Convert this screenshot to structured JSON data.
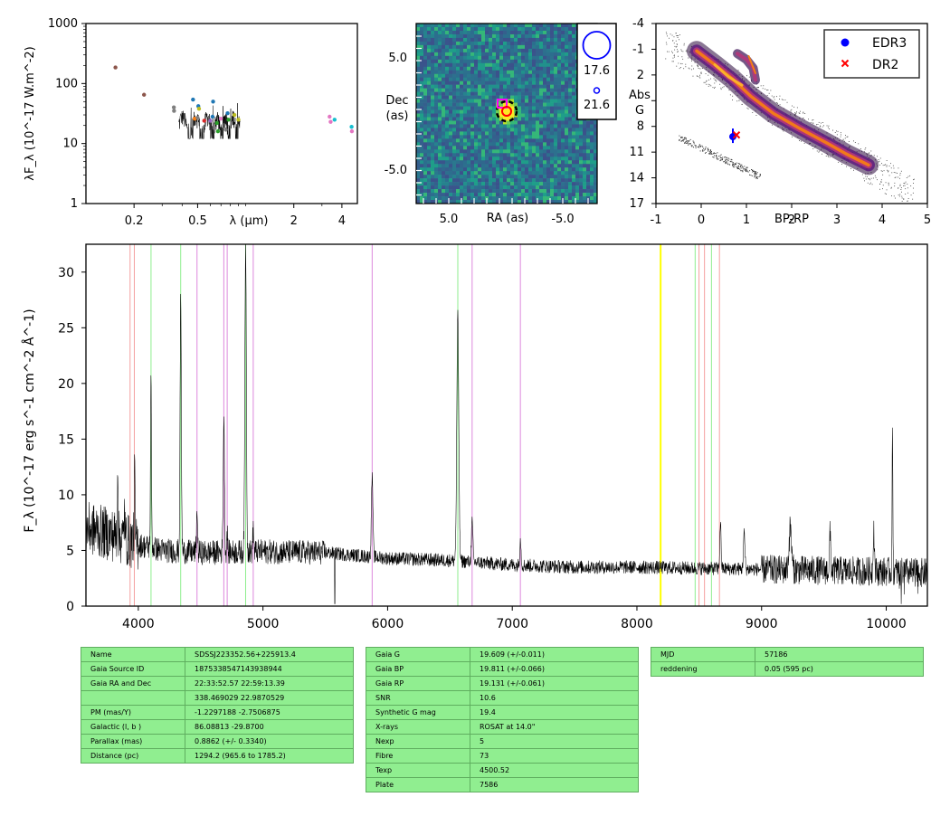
{
  "sed": {
    "ylabel": "λF_λ (10^-17 W.m^-2)",
    "xlabel": "λ (μm)",
    "xticks": [
      "0.2",
      "0.5",
      "2",
      "4"
    ],
    "yticks": [
      "1",
      "10",
      "100",
      "1000"
    ],
    "ylim": [
      1,
      1000
    ],
    "xlim": [
      0.1,
      5
    ],
    "points": [
      {
        "x": 0.153,
        "y": 185,
        "color": "#8c564b"
      },
      {
        "x": 0.231,
        "y": 65,
        "color": "#8c564b"
      },
      {
        "x": 0.355,
        "y": 40,
        "color": "#7f7f7f"
      },
      {
        "x": 0.356,
        "y": 35,
        "color": "#7f7f7f"
      },
      {
        "x": 0.468,
        "y": 54,
        "color": "#1f77b4"
      },
      {
        "x": 0.48,
        "y": 26,
        "color": "#ff7f0e"
      },
      {
        "x": 0.5,
        "y": 27,
        "color": "#7f7f7f"
      },
      {
        "x": 0.505,
        "y": 42,
        "color": "#1f77b4"
      },
      {
        "x": 0.51,
        "y": 38,
        "color": "#bcbd22"
      },
      {
        "x": 0.55,
        "y": 24,
        "color": "#d62728"
      },
      {
        "x": 0.6,
        "y": 24,
        "color": "#9467bd"
      },
      {
        "x": 0.62,
        "y": 28,
        "color": "#1f77b4"
      },
      {
        "x": 0.625,
        "y": 50,
        "color": "#1f77b4"
      },
      {
        "x": 0.64,
        "y": 18,
        "color": "#7f7f7f"
      },
      {
        "x": 0.66,
        "y": 22,
        "color": "#2ca02c"
      },
      {
        "x": 0.67,
        "y": 16,
        "color": "#2ca02c"
      },
      {
        "x": 0.7,
        "y": 26,
        "color": "#e377c2"
      },
      {
        "x": 0.75,
        "y": 17,
        "color": "#7f7f7f"
      },
      {
        "x": 0.77,
        "y": 32,
        "color": "#1f77b4"
      },
      {
        "x": 0.78,
        "y": 25,
        "color": "#2ca02c"
      },
      {
        "x": 0.85,
        "y": 30,
        "color": "#bcbd22"
      },
      {
        "x": 0.9,
        "y": 25,
        "color": "#bcbd22"
      },
      {
        "x": 3.35,
        "y": 28,
        "color": "#e377c2"
      },
      {
        "x": 3.4,
        "y": 23,
        "color": "#e377c2"
      },
      {
        "x": 3.6,
        "y": 25,
        "color": "#17becf"
      },
      {
        "x": 4.6,
        "y": 19,
        "color": "#17becf"
      },
      {
        "x": 4.62,
        "y": 16,
        "color": "#e377c2"
      }
    ]
  },
  "image": {
    "xlabel": "RA (as)",
    "ylabel_line1": "Dec",
    "ylabel_line2": "(as)",
    "xticks": [
      "5.0",
      "-5.0"
    ],
    "yticks": [
      "5.0",
      "-5.0"
    ],
    "legend": [
      "17.6",
      "21.6"
    ]
  },
  "hrd": {
    "xlabel": "BP-RP",
    "ylabel_line1": "Abs",
    "ylabel_line2": "G",
    "xticks": [
      "-1",
      "0",
      "1",
      "2",
      "3",
      "4",
      "5"
    ],
    "yticks": [
      "-4",
      "-1",
      "2",
      "5",
      "8",
      "11",
      "14",
      "17"
    ],
    "legend": [
      {
        "label": "EDR3",
        "color": "#0000ff",
        "marker": "circle"
      },
      {
        "label": "DR2",
        "color": "#ff0000",
        "marker": "x"
      }
    ],
    "edr3": {
      "bp_rp": 0.7,
      "absg": 9.2
    },
    "dr2": {
      "bp_rp": 0.78,
      "absg": 9.0
    }
  },
  "chart_data": {
    "type": "line",
    "ylabel": "F_λ (10^-17 erg s^-1 cm^-2 Å^-1)",
    "xlim": [
      3580,
      10330
    ],
    "ylim": [
      0,
      32.5
    ],
    "xticks": [
      "4000",
      "5000",
      "6000",
      "7000",
      "8000",
      "9000",
      "10000"
    ],
    "yticks": [
      "0",
      "5",
      "10",
      "15",
      "20",
      "25",
      "30"
    ],
    "continuum": [
      [
        3580,
        7.0
      ],
      [
        3700,
        6.7
      ],
      [
        3900,
        6.0
      ],
      [
        4000,
        5.5
      ],
      [
        4200,
        5.0
      ],
      [
        4500,
        4.8
      ],
      [
        5000,
        4.9
      ],
      [
        5500,
        4.8
      ],
      [
        6000,
        4.3
      ],
      [
        6500,
        4.1
      ],
      [
        7000,
        3.7
      ],
      [
        7500,
        3.5
      ],
      [
        8000,
        3.5
      ],
      [
        8500,
        3.4
      ],
      [
        9000,
        3.3
      ],
      [
        9500,
        3.2
      ],
      [
        10000,
        3.1
      ],
      [
        10330,
        3.0
      ]
    ],
    "emission_lines": [
      {
        "x": 3835,
        "peak": 13,
        "width": 3
      },
      {
        "x": 3889,
        "peak": 9,
        "width": 3
      },
      {
        "x": 3970,
        "peak": 12,
        "width": 3
      },
      {
        "x": 4102,
        "peak": 20,
        "width": 4
      },
      {
        "x": 4340,
        "peak": 27.5,
        "width": 5
      },
      {
        "x": 4471,
        "peak": 8.7,
        "width": 4
      },
      {
        "x": 4686,
        "peak": 17,
        "width": 5
      },
      {
        "x": 4713,
        "peak": 7,
        "width": 3
      },
      {
        "x": 4861,
        "peak": 32.5,
        "width": 6
      },
      {
        "x": 4922,
        "peak": 7,
        "width": 4
      },
      {
        "x": 5876,
        "peak": 11.5,
        "width": 6
      },
      {
        "x": 6563,
        "peak": 26,
        "width": 8
      },
      {
        "x": 6678,
        "peak": 7.5,
        "width": 6
      },
      {
        "x": 7065,
        "peak": 6.2,
        "width": 5
      },
      {
        "x": 8670,
        "peak": 7.5,
        "width": 5
      },
      {
        "x": 8860,
        "peak": 6.5,
        "width": 6
      },
      {
        "x": 9230,
        "peak": 7,
        "width": 10
      },
      {
        "x": 9550,
        "peak": 6.5,
        "width": 5
      },
      {
        "x": 9900,
        "peak": 7,
        "width": 5
      },
      {
        "x": 10050,
        "peak": 14.8,
        "width": 3
      }
    ],
    "absorption_dips": [
      {
        "x": 5577,
        "depth": 0
      }
    ],
    "vlines": [
      {
        "x": 3934,
        "color": "#f4a0a0"
      },
      {
        "x": 3968,
        "color": "#f4a0a0"
      },
      {
        "x": 4102,
        "color": "#90ee90"
      },
      {
        "x": 4340,
        "color": "#90ee90"
      },
      {
        "x": 4471,
        "color": "#dd88dd"
      },
      {
        "x": 4686,
        "color": "#dd88dd"
      },
      {
        "x": 4713,
        "color": "#dd88dd"
      },
      {
        "x": 4861,
        "color": "#90ee90"
      },
      {
        "x": 4922,
        "color": "#dd88dd"
      },
      {
        "x": 5876,
        "color": "#dd88dd"
      },
      {
        "x": 6563,
        "color": "#90ee90"
      },
      {
        "x": 6678,
        "color": "#dd88dd"
      },
      {
        "x": 7065,
        "color": "#dd88dd"
      },
      {
        "x": 8190,
        "color": "#ffff00"
      },
      {
        "x": 8498,
        "color": "#f4a0a0"
      },
      {
        "x": 8542,
        "color": "#f4a0a0"
      },
      {
        "x": 8662,
        "color": "#f4a0a0"
      },
      {
        "x": 8467,
        "color": "#90ee90"
      },
      {
        "x": 8598,
        "color": "#90ee90"
      }
    ]
  },
  "tables": [
    [
      [
        "Name",
        "SDSSJ223352.56+225913.4"
      ],
      [
        "Gaia Source ID",
        "1875338547143938944"
      ],
      [
        "Gaia RA and Dec",
        "22:33:52.57    22:59:13.39"
      ],
      [
        "",
        "338.469029    22.9870529"
      ],
      [
        "PM (mas/Y)",
        "-1.2297188    -2.7506875"
      ],
      [
        "Galactic (l, b )",
        "86.08813    -29.8700"
      ],
      [
        "Parallax (mas)",
        "0.8862 (+/- 0.3340)"
      ],
      [
        "Distance (pc)",
        "1294.2 (965.6 to 1785.2)"
      ]
    ],
    [
      [
        "Gaia G",
        "19.609 (+/-0.011)"
      ],
      [
        "Gaia BP",
        "19.811 (+/-0.066)"
      ],
      [
        "Gaia RP",
        "19.131 (+/-0.061)"
      ],
      [
        "SNR",
        "10.6"
      ],
      [
        "Synthetic G mag",
        "19.4"
      ],
      [
        "X-rays",
        "ROSAT at 14.0\""
      ],
      [
        "Nexp",
        "5"
      ],
      [
        "Fibre",
        "73"
      ],
      [
        "Texp",
        "4500.52"
      ],
      [
        "Plate",
        "7586"
      ]
    ],
    [
      [
        "MJD",
        "57186"
      ],
      [
        "reddening",
        "0.05 (595 pc)"
      ]
    ]
  ]
}
